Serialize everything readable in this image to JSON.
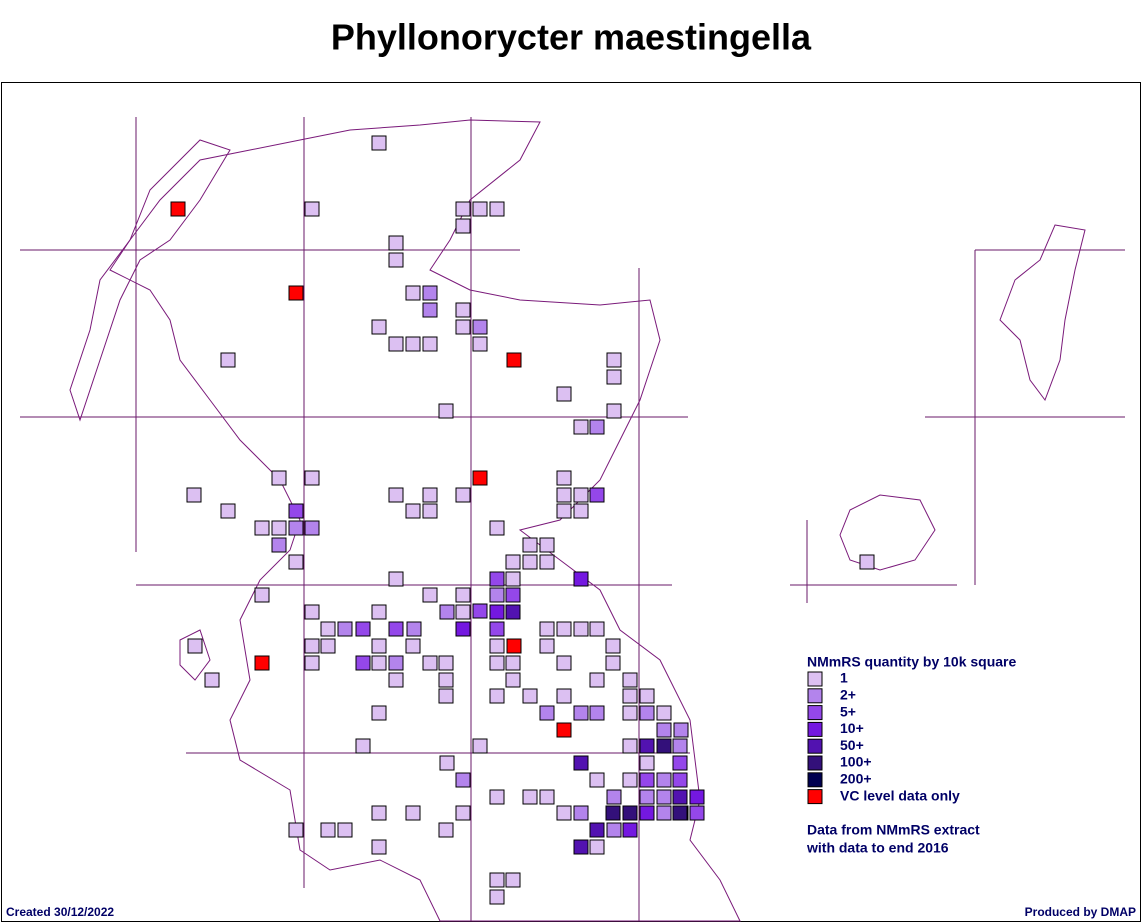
{
  "title": "Phyllonorycter maestingella",
  "legend": {
    "title": "NMmRS quantity by 10k square",
    "items": [
      {
        "label": "1",
        "color": "#dcc0f2"
      },
      {
        "label": "2+",
        "color": "#b384ec"
      },
      {
        "label": "5+",
        "color": "#9447ea"
      },
      {
        "label": "10+",
        "color": "#7418e0"
      },
      {
        "label": "50+",
        "color": "#5212b0"
      },
      {
        "label": "100+",
        "color": "#33107a"
      },
      {
        "label": "200+",
        "color": "#000050"
      },
      {
        "label": "VC level data only",
        "color": "#ff0000"
      }
    ]
  },
  "note": [
    "Data from NMmRS extract",
    "with data to end 2016"
  ],
  "footer": {
    "created": "Created 30/12/2022",
    "produced": "Produced by DMAP"
  }
}
